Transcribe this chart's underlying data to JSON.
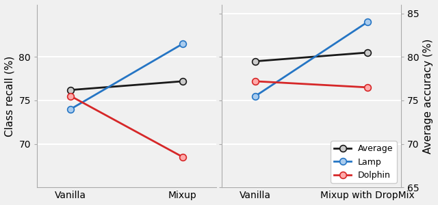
{
  "left": {
    "xlabel_vanilla": "Vanilla",
    "xlabel_mixup": "Mixup",
    "ylabel": "Class recall (%)",
    "ylim": [
      65,
      86
    ],
    "yticks": [
      70,
      75,
      80
    ],
    "average": [
      76.2,
      77.2
    ],
    "lamp": [
      74.0,
      81.5
    ],
    "dolphin": [
      75.5,
      68.5
    ]
  },
  "right": {
    "xlabel_vanilla": "Vanilla",
    "xlabel_mixup": "Mixup with DropMix",
    "ylabel": "Average accuracy (%)",
    "ylim": [
      65,
      86
    ],
    "yticks": [
      65,
      70,
      75,
      80,
      85
    ],
    "average": [
      79.5,
      80.5
    ],
    "lamp": [
      75.5,
      84.0
    ],
    "dolphin": [
      77.2,
      76.5
    ]
  },
  "colors": {
    "average": "#1a1a1a",
    "lamp": "#2575c4",
    "dolphin": "#d62728"
  },
  "markerfacecolors": {
    "average": "#cccccc",
    "lamp": "#aaccee",
    "dolphin": "#ffaaaa"
  },
  "markeredgecolors": {
    "average": "#1a1a1a",
    "lamp": "#2575c4",
    "dolphin": "#d62728"
  },
  "legend_labels": [
    "Average",
    "Lamp",
    "Dolphin"
  ],
  "series_keys": [
    "average",
    "lamp",
    "dolphin"
  ],
  "marker": "o",
  "markersize": 7,
  "linewidth": 2,
  "bg_color": "#f0f0f0",
  "grid_color": "#ffffff",
  "fontsize_tick": 10,
  "fontsize_label": 11
}
